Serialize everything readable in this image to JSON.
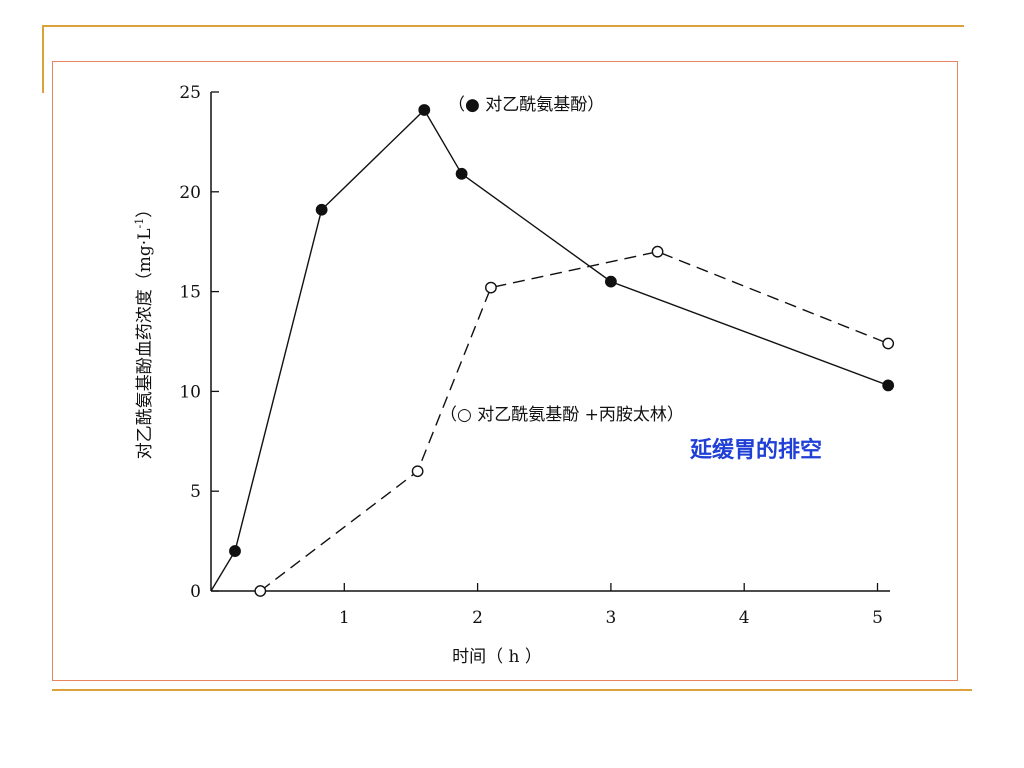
{
  "chart_data": {
    "type": "line",
    "xlabel": "时间（ h ）",
    "ylabel": "对乙酰氨基酚血药浓度（mg·L",
    "ylabel_sup": "-1",
    "ylabel_close": "）",
    "xlim": [
      0,
      5.05
    ],
    "ylim": [
      0,
      25
    ],
    "x_ticks": [
      1,
      2,
      3,
      4,
      5
    ],
    "y_ticks": [
      0,
      5,
      10,
      15,
      20,
      25
    ],
    "grid": false,
    "series": [
      {
        "name": "（● 对乙酰氨基酚）",
        "style": "solid",
        "marker": "filled-circle",
        "x": [
          0,
          0.18,
          0.83,
          1.6,
          1.88,
          3.0,
          5.08
        ],
        "y": [
          0,
          2.0,
          19.1,
          24.1,
          20.9,
          15.5,
          10.3
        ]
      },
      {
        "name": "（○ 对乙酰氨基酚 +丙胺太林）",
        "style": "dashed",
        "marker": "open-circle",
        "x": [
          0.37,
          1.55,
          2.1,
          3.35,
          5.08
        ],
        "y": [
          0,
          6.0,
          15.2,
          17.0,
          12.4
        ]
      }
    ],
    "annotations": [
      {
        "text": "延缓胃的排空",
        "color": "#1f3fd6"
      }
    ]
  }
}
